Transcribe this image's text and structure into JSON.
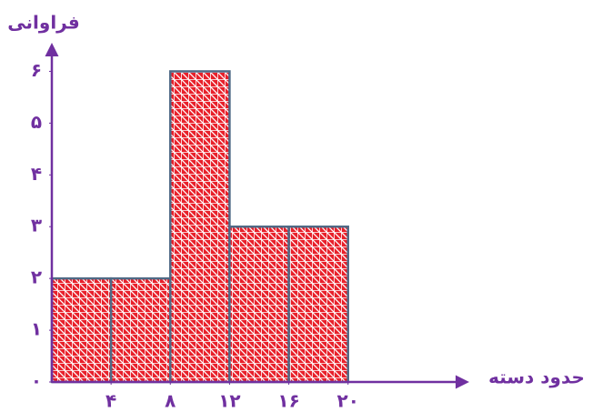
{
  "chart_data": {
    "type": "histogram",
    "x_label": "حدود دسته",
    "y_label": "فراوانی",
    "bins": [
      0,
      4,
      8,
      12,
      16,
      20
    ],
    "values": [
      2,
      2,
      6,
      3,
      3
    ],
    "color": "#e8202a",
    "edge_color": "#4f6a86",
    "axis_color": "#7030a0",
    "xlim": [
      0,
      28
    ],
    "ylim": [
      0,
      6.5
    ],
    "xticks": [
      {
        "value": 4,
        "label": "۴"
      },
      {
        "value": 8,
        "label": "۸"
      },
      {
        "value": 12,
        "label": "۱۲"
      },
      {
        "value": 16,
        "label": "۱۶"
      },
      {
        "value": 20,
        "label": "۲۰"
      }
    ],
    "yticks": [
      {
        "value": 0,
        "label": "۰"
      },
      {
        "value": 1,
        "label": "۱"
      },
      {
        "value": 2,
        "label": "۲"
      },
      {
        "value": 3,
        "label": "۳"
      },
      {
        "value": 4,
        "label": "۴"
      },
      {
        "value": 5,
        "label": "۵"
      },
      {
        "value": 6,
        "label": "۶"
      }
    ]
  }
}
